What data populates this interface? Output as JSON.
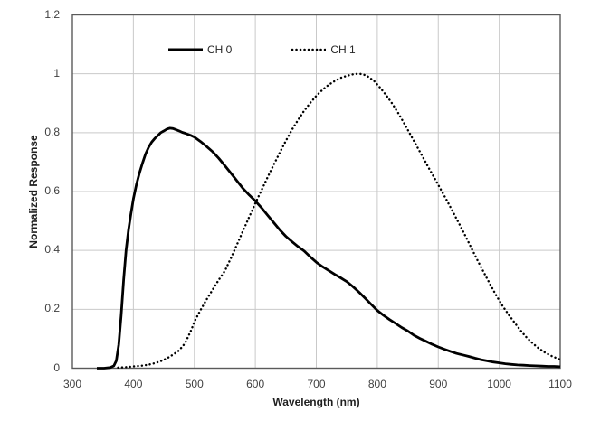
{
  "figure": {
    "background": "#ffffff",
    "grid_color": "#c9c9c9",
    "border_color": "#5a5a5a",
    "tick_text_color": "#3f3f3f",
    "curve_color": "#000000"
  },
  "chart_data": {
    "type": "line",
    "title": "",
    "xlabel": "Wavelength (nm)",
    "ylabel": "Normalized Response",
    "xlim": [
      300,
      1100
    ],
    "ylim": [
      0,
      1.2
    ],
    "xticks": [
      300,
      400,
      500,
      600,
      700,
      800,
      900,
      1000,
      1100
    ],
    "yticks": [
      0,
      0.2,
      0.4,
      0.6,
      0.8,
      1,
      1.2
    ],
    "ytick_labels": [
      "0",
      "0.2",
      "0.4",
      "0.6",
      "0.8",
      "1",
      "1.2"
    ],
    "grid": true,
    "legend_position": "top-inside",
    "series": [
      {
        "name": "CH 0",
        "style": "solid",
        "color": "#000000",
        "points": [
          [
            340,
            0
          ],
          [
            352,
            0
          ],
          [
            362,
            0.002
          ],
          [
            368,
            0.008
          ],
          [
            372,
            0.025
          ],
          [
            376,
            0.08
          ],
          [
            380,
            0.18
          ],
          [
            384,
            0.3
          ],
          [
            388,
            0.4
          ],
          [
            392,
            0.47
          ],
          [
            396,
            0.525
          ],
          [
            400,
            0.575
          ],
          [
            405,
            0.623
          ],
          [
            410,
            0.663
          ],
          [
            415,
            0.697
          ],
          [
            420,
            0.727
          ],
          [
            425,
            0.75
          ],
          [
            430,
            0.768
          ],
          [
            435,
            0.78
          ],
          [
            440,
            0.79
          ],
          [
            445,
            0.8
          ],
          [
            450,
            0.806
          ],
          [
            455,
            0.812
          ],
          [
            460,
            0.815
          ],
          [
            465,
            0.814
          ],
          [
            470,
            0.81
          ],
          [
            475,
            0.806
          ],
          [
            480,
            0.801
          ],
          [
            485,
            0.798
          ],
          [
            490,
            0.794
          ],
          [
            495,
            0.79
          ],
          [
            500,
            0.785
          ],
          [
            510,
            0.77
          ],
          [
            520,
            0.753
          ],
          [
            530,
            0.735
          ],
          [
            540,
            0.713
          ],
          [
            550,
            0.688
          ],
          [
            560,
            0.662
          ],
          [
            570,
            0.636
          ],
          [
            580,
            0.61
          ],
          [
            590,
            0.588
          ],
          [
            600,
            0.568
          ],
          [
            610,
            0.545
          ],
          [
            620,
            0.52
          ],
          [
            630,
            0.495
          ],
          [
            640,
            0.47
          ],
          [
            650,
            0.448
          ],
          [
            660,
            0.43
          ],
          [
            670,
            0.413
          ],
          [
            680,
            0.398
          ],
          [
            690,
            0.378
          ],
          [
            700,
            0.36
          ],
          [
            710,
            0.345
          ],
          [
            720,
            0.332
          ],
          [
            730,
            0.319
          ],
          [
            740,
            0.307
          ],
          [
            750,
            0.294
          ],
          [
            760,
            0.277
          ],
          [
            770,
            0.258
          ],
          [
            780,
            0.238
          ],
          [
            790,
            0.217
          ],
          [
            800,
            0.196
          ],
          [
            810,
            0.18
          ],
          [
            820,
            0.165
          ],
          [
            830,
            0.152
          ],
          [
            840,
            0.138
          ],
          [
            850,
            0.126
          ],
          [
            860,
            0.112
          ],
          [
            870,
            0.101
          ],
          [
            880,
            0.091
          ],
          [
            890,
            0.081
          ],
          [
            900,
            0.072
          ],
          [
            910,
            0.064
          ],
          [
            920,
            0.057
          ],
          [
            930,
            0.05
          ],
          [
            940,
            0.045
          ],
          [
            950,
            0.04
          ],
          [
            960,
            0.034
          ],
          [
            970,
            0.029
          ],
          [
            980,
            0.025
          ],
          [
            990,
            0.021
          ],
          [
            1000,
            0.018
          ],
          [
            1010,
            0.015
          ],
          [
            1020,
            0.013
          ],
          [
            1030,
            0.011
          ],
          [
            1040,
            0.01
          ],
          [
            1050,
            0.009
          ],
          [
            1060,
            0.008
          ],
          [
            1070,
            0.007
          ],
          [
            1080,
            0.006
          ],
          [
            1090,
            0.006
          ],
          [
            1100,
            0.005
          ]
        ]
      },
      {
        "name": "CH 1",
        "style": "dotted",
        "color": "#000000",
        "points": [
          [
            375,
            0.002
          ],
          [
            385,
            0.003
          ],
          [
            395,
            0.005
          ],
          [
            405,
            0.007
          ],
          [
            415,
            0.009
          ],
          [
            425,
            0.012
          ],
          [
            435,
            0.017
          ],
          [
            445,
            0.024
          ],
          [
            455,
            0.033
          ],
          [
            465,
            0.046
          ],
          [
            475,
            0.06
          ],
          [
            485,
            0.085
          ],
          [
            495,
            0.13
          ],
          [
            500,
            0.158
          ],
          [
            510,
            0.197
          ],
          [
            520,
            0.233
          ],
          [
            530,
            0.267
          ],
          [
            540,
            0.3
          ],
          [
            550,
            0.33
          ],
          [
            560,
            0.374
          ],
          [
            570,
            0.42
          ],
          [
            580,
            0.467
          ],
          [
            590,
            0.514
          ],
          [
            600,
            0.56
          ],
          [
            610,
            0.604
          ],
          [
            620,
            0.648
          ],
          [
            630,
            0.69
          ],
          [
            640,
            0.732
          ],
          [
            650,
            0.772
          ],
          [
            660,
            0.81
          ],
          [
            670,
            0.843
          ],
          [
            680,
            0.874
          ],
          [
            690,
            0.901
          ],
          [
            700,
            0.925
          ],
          [
            710,
            0.945
          ],
          [
            720,
            0.962
          ],
          [
            730,
            0.975
          ],
          [
            740,
            0.986
          ],
          [
            750,
            0.993
          ],
          [
            760,
            0.998
          ],
          [
            768,
            1.0
          ],
          [
            776,
            0.999
          ],
          [
            785,
            0.99
          ],
          [
            795,
            0.975
          ],
          [
            805,
            0.952
          ],
          [
            815,
            0.926
          ],
          [
            825,
            0.897
          ],
          [
            835,
            0.864
          ],
          [
            845,
            0.828
          ],
          [
            855,
            0.791
          ],
          [
            865,
            0.753
          ],
          [
            875,
            0.716
          ],
          [
            885,
            0.678
          ],
          [
            895,
            0.641
          ],
          [
            905,
            0.604
          ],
          [
            915,
            0.566
          ],
          [
            925,
            0.527
          ],
          [
            935,
            0.488
          ],
          [
            945,
            0.447
          ],
          [
            955,
            0.405
          ],
          [
            965,
            0.364
          ],
          [
            975,
            0.324
          ],
          [
            985,
            0.285
          ],
          [
            995,
            0.247
          ],
          [
            1005,
            0.213
          ],
          [
            1015,
            0.183
          ],
          [
            1025,
            0.155
          ],
          [
            1035,
            0.128
          ],
          [
            1045,
            0.104
          ],
          [
            1055,
            0.084
          ],
          [
            1065,
            0.067
          ],
          [
            1075,
            0.053
          ],
          [
            1085,
            0.042
          ],
          [
            1095,
            0.033
          ],
          [
            1100,
            0.029
          ]
        ]
      }
    ]
  }
}
